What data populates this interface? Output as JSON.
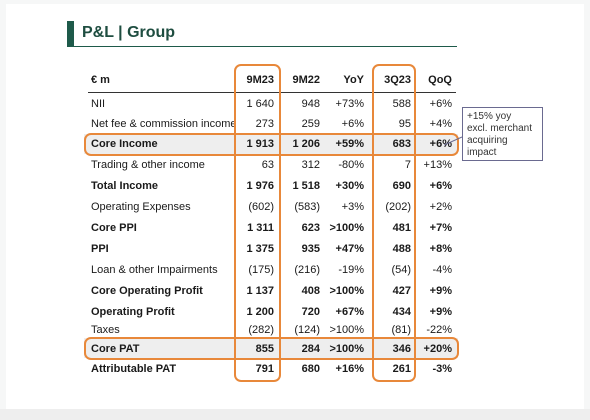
{
  "title": "P&L | Group",
  "headers": [
    "€ m",
    "9M23",
    "9M22",
    "YoY",
    "3Q23",
    "QoQ"
  ],
  "rows": [
    {
      "label": "NII",
      "v": [
        "1 640",
        "948",
        "+73%",
        "588",
        "+6%"
      ],
      "bold": false
    },
    {
      "label": "Net fee & commission income",
      "v": [
        "273",
        "259",
        "+6%",
        "95",
        "+4%"
      ],
      "bold": false
    },
    {
      "label": "Core Income",
      "v": [
        "1 913",
        "1 206",
        "+59%",
        "683",
        "+6%"
      ],
      "bold": true
    },
    {
      "label": "Trading & other income",
      "v": [
        "63",
        "312",
        "-80%",
        "7",
        "+13%"
      ],
      "bold": false
    },
    {
      "label": "Total Income",
      "v": [
        "1 976",
        "1 518",
        "+30%",
        "690",
        "+6%"
      ],
      "bold": true
    },
    {
      "label": "Operating Expenses",
      "v": [
        "(602)",
        "(583)",
        "+3%",
        "(202)",
        "+2%"
      ],
      "bold": false
    },
    {
      "label": "Core PPI",
      "v": [
        "1 311",
        "623",
        ">100%",
        "481",
        "+7%"
      ],
      "bold": true
    },
    {
      "label": "PPI",
      "v": [
        "1 375",
        "935",
        "+47%",
        "488",
        "+8%"
      ],
      "bold": true
    },
    {
      "label": "Loan & other Impairments",
      "v": [
        "(175)",
        "(216)",
        "-19%",
        "(54)",
        "-4%"
      ],
      "bold": false
    },
    {
      "label": "Core Operating Profit",
      "v": [
        "1 137",
        "408",
        ">100%",
        "427",
        "+9%"
      ],
      "bold": true
    },
    {
      "label": "Operating Profit",
      "v": [
        "1 200",
        "720",
        "+67%",
        "434",
        "+9%"
      ],
      "bold": true
    },
    {
      "label": "Taxes",
      "v": [
        "(282)",
        "(124)",
        ">100%",
        "(81)",
        "-22%"
      ],
      "bold": false
    },
    {
      "label": "Core PAT",
      "v": [
        "855",
        "284",
        ">100%",
        "346",
        "+20%"
      ],
      "bold": true
    },
    {
      "label": "Attributable PAT",
      "v": [
        "791",
        "680",
        "+16%",
        "261",
        "-3%"
      ],
      "bold": true
    }
  ],
  "callout": {
    "lines": [
      "+15% yoy",
      "excl. merchant",
      "acquiring",
      "impact"
    ]
  },
  "colors": {
    "accent": "#e8883a",
    "title": "#1e5a4a",
    "highlight_row": "#eeeeee"
  }
}
